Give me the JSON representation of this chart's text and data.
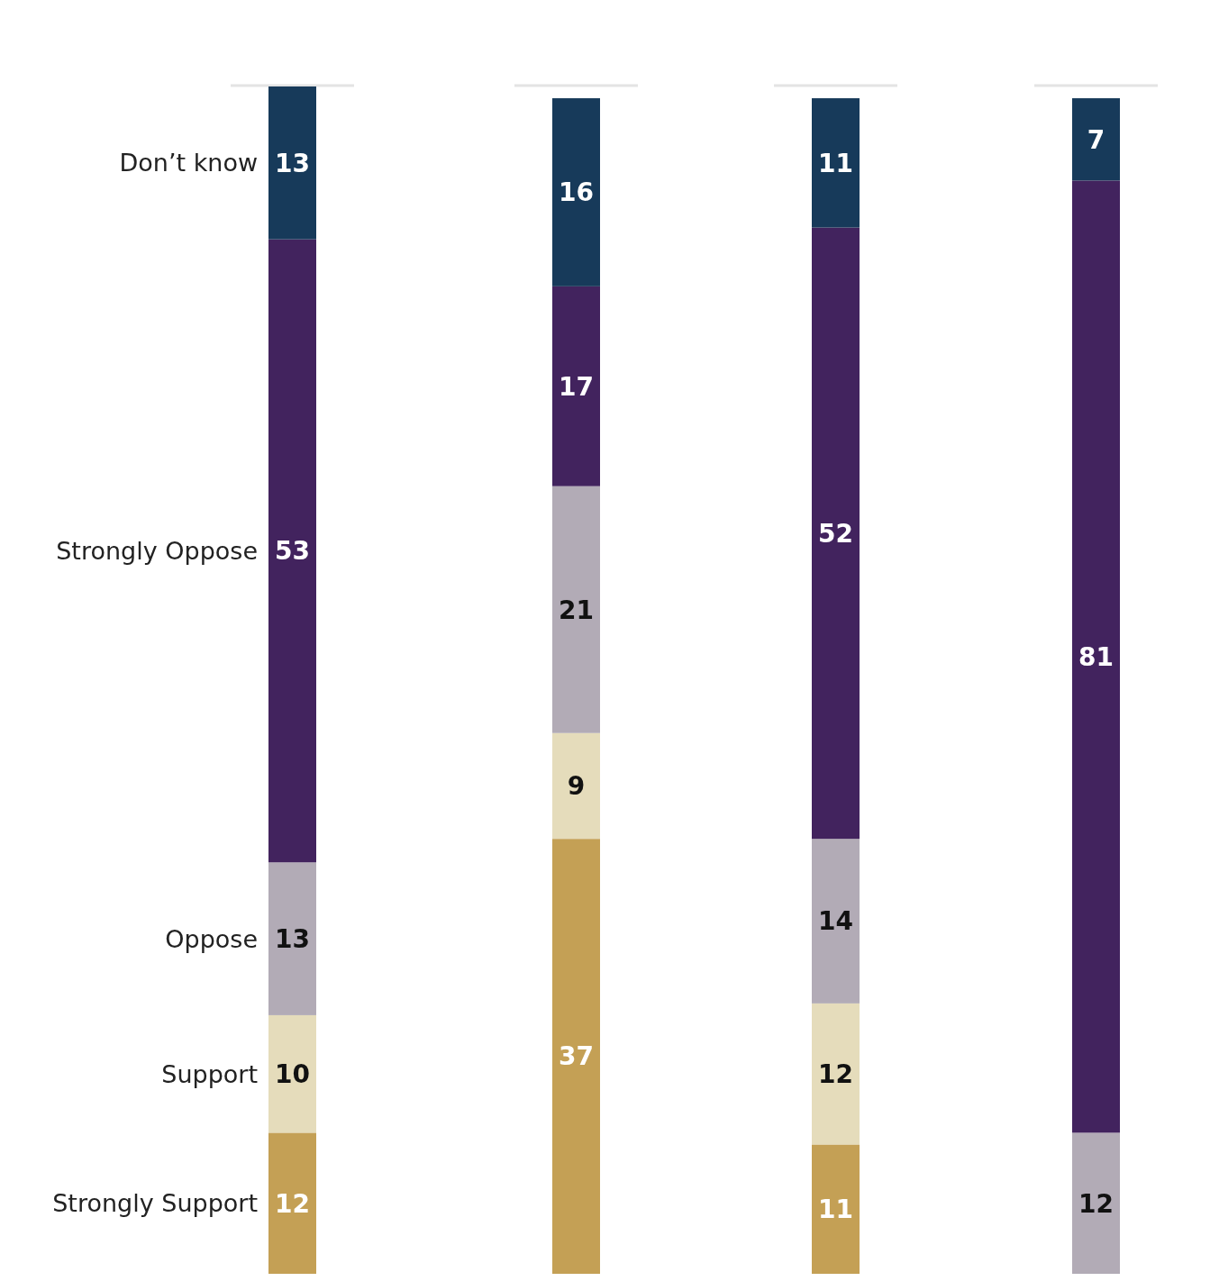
{
  "chart_data": {
    "type": "bar",
    "stacked": true,
    "categories": [
      null,
      null,
      null,
      null
    ],
    "series": [
      {
        "name": "Strongly Support",
        "color": "#c4a055",
        "values": [
          12,
          37,
          11,
          null
        ]
      },
      {
        "name": "Support",
        "color": "#e5dcbb",
        "values": [
          10,
          9,
          12,
          null
        ]
      },
      {
        "name": "Oppose",
        "color": "#b2abb6",
        "values": [
          13,
          21,
          14,
          12
        ]
      },
      {
        "name": "Strongly Oppose",
        "color": "#42235e",
        "values": [
          53,
          17,
          52,
          81
        ]
      },
      {
        "name": "Don’t know",
        "color": "#173a5a",
        "values": [
          13,
          16,
          11,
          7
        ]
      }
    ],
    "data_labels": true,
    "legend": "left"
  }
}
